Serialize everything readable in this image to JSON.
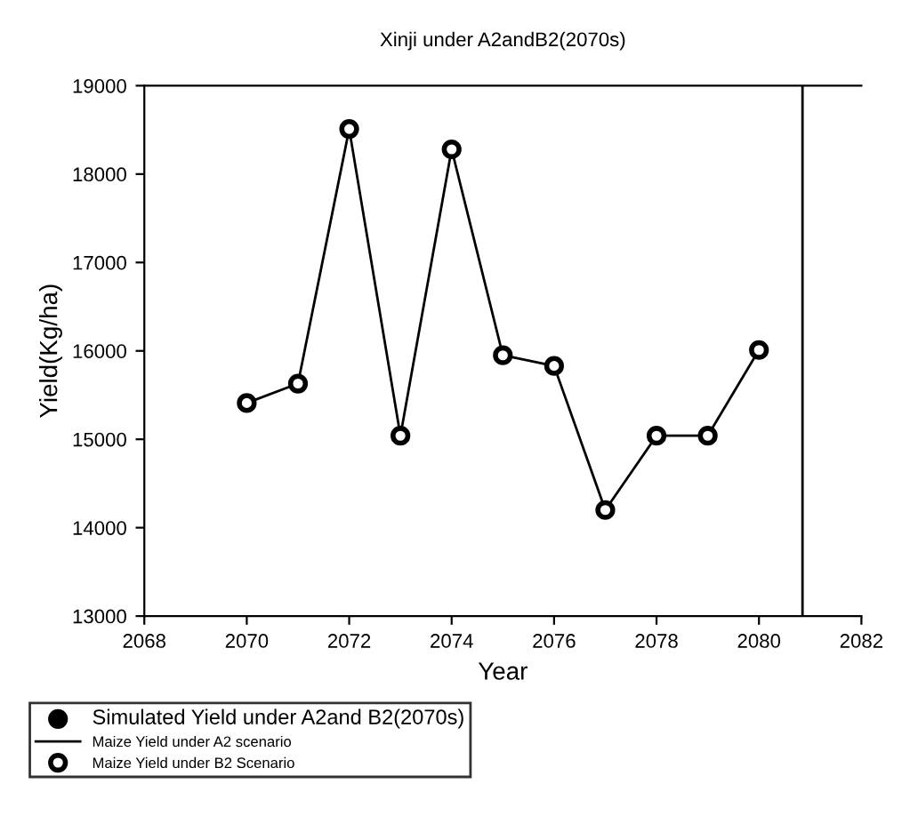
{
  "chart_data": {
    "type": "line",
    "title": "Xinji under A2andB2(2070s)",
    "xlabel": "Year",
    "ylabel": "Yield(Kg/ha)",
    "legend_title": "Simulated Yield under A2and B2(2070s)",
    "x": [
      2070,
      2071,
      2072,
      2073,
      2074,
      2075,
      2076,
      2077,
      2078,
      2079,
      2080
    ],
    "series": [
      {
        "name": "Maize Yield under A2 scenario",
        "color": "#000000",
        "marker": "none",
        "line_style": "solid",
        "values": [
          15410,
          15630,
          18510,
          15040,
          18280,
          15950,
          15830,
          14200,
          15040,
          15040,
          16010
        ]
      },
      {
        "name": "Maize Yield under B2 Scenario",
        "type": "scatter",
        "color": "#000000",
        "marker": "circle",
        "values": [
          15410,
          15630,
          18510,
          15040,
          18280,
          15950,
          15830,
          14200,
          15040,
          15040,
          16010
        ]
      }
    ],
    "xlim": [
      2068,
      2082
    ],
    "xticks": [
      2068,
      2070,
      2072,
      2074,
      2076,
      2078,
      2080,
      2082
    ],
    "ylim": [
      13000,
      19000
    ],
    "yticks": [
      13000,
      14000,
      15000,
      16000,
      17000,
      18000,
      19000
    ],
    "ref_lines": [
      {
        "axis": "x",
        "value": 2080.85,
        "color": "#000000"
      }
    ],
    "grid": false,
    "legend": "bottom"
  }
}
